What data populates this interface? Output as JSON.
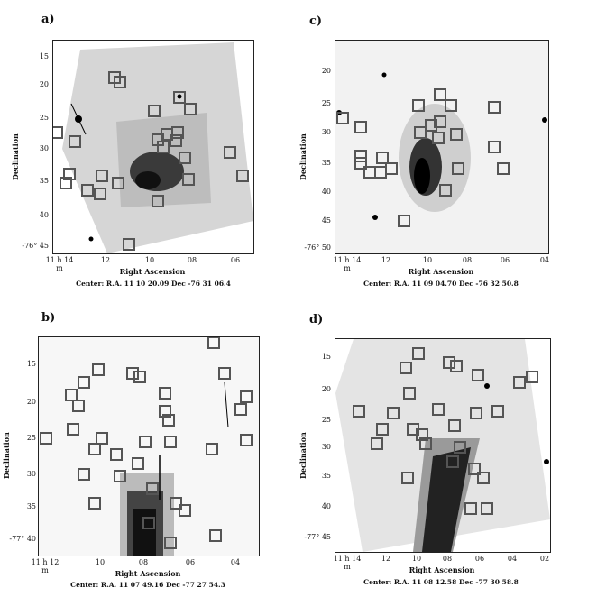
{
  "panels": {
    "a": {
      "label": "a)",
      "yticks": [
        "15",
        "20",
        "25",
        "30",
        "35",
        "40",
        "-76° 45"
      ],
      "xticks": [
        "11 h 14 m",
        "12",
        "10",
        "08",
        "06"
      ],
      "ylabel": "Declination",
      "xlabel": "Right Ascension",
      "center": "Center:  R.A. 11 10 20.09    Dec  -76 31 06.4"
    },
    "b": {
      "label": "b)",
      "yticks": [
        "15",
        "20",
        "25",
        "30",
        "35",
        "-77° 40"
      ],
      "xticks": [
        "11 h 12 m",
        "10",
        "08",
        "06",
        "04"
      ],
      "ylabel": "Declination",
      "xlabel": "Right Ascension",
      "center": "Center:  R.A. 11 07 49.16    Dec  -77 27 54.3"
    },
    "c": {
      "label": "c)",
      "yticks": [
        "20",
        "25",
        "30",
        "35",
        "40",
        "45",
        "-76° 50"
      ],
      "xticks": [
        "11 h 14 m",
        "12",
        "10",
        "08",
        "06",
        "04"
      ],
      "ylabel": "Declination",
      "xlabel": "Right Ascension",
      "center": "Center:  R.A. 11 09 04.70    Dec  -76 32 50.8"
    },
    "d": {
      "label": "d)",
      "yticks": [
        "15",
        "20",
        "25",
        "30",
        "35",
        "40",
        "-77° 45"
      ],
      "xticks": [
        "11 h 14 m",
        "12",
        "10",
        "08",
        "06",
        "04",
        "02"
      ],
      "ylabel": "Declination",
      "xlabel": "Right Ascension",
      "center": "Center:  R.A. 11 08 12.58    Dec  -77 30 58.8"
    }
  }
}
